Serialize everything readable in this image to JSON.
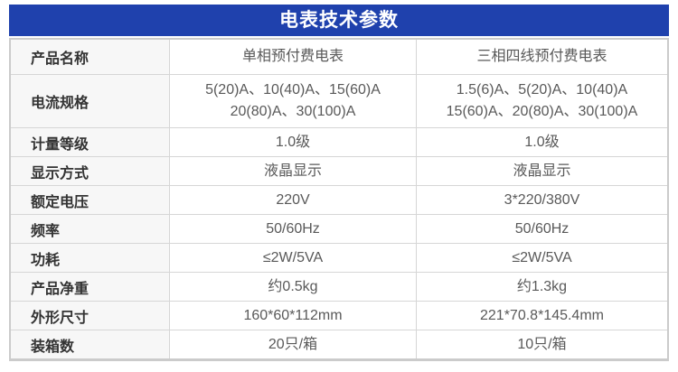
{
  "header": {
    "title": "电表技术参数"
  },
  "colors": {
    "header_bg": "#1f41ad",
    "header_text": "#ffffff",
    "outer_border": "#cbcbcb",
    "inner_border": "#d6d6d6",
    "label_bg": "#f7f7f7",
    "label_text": "#333333",
    "value_text": "#595959"
  },
  "table": {
    "rows": [
      {
        "label": "产品名称",
        "values": [
          "单相预付费电表",
          "三相四线预付费电表"
        ]
      },
      {
        "label": "电流规格",
        "values": [
          "5(20)A、10(40)A、15(60)A\n20(80)A、30(100)A",
          "1.5(6)A、5(20)A、10(40)A\n15(60)A、20(80)A、30(100)A"
        ]
      },
      {
        "label": "计量等级",
        "values": [
          "1.0级",
          "1.0级"
        ]
      },
      {
        "label": "显示方式",
        "values": [
          "液晶显示",
          "液晶显示"
        ]
      },
      {
        "label": "额定电压",
        "values": [
          "220V",
          "3*220/380V"
        ]
      },
      {
        "label": "频率",
        "values": [
          "50/60Hz",
          "50/60Hz"
        ]
      },
      {
        "label": "功耗",
        "values": [
          "≤2W/5VA",
          "≤2W/5VA"
        ]
      },
      {
        "label": "产品净重",
        "values": [
          "约0.5kg",
          "约1.3kg"
        ]
      },
      {
        "label": "外形尺寸",
        "values": [
          "160*60*112mm",
          "221*70.8*145.4mm"
        ]
      },
      {
        "label": "装箱数",
        "values": [
          "20只/箱",
          "10只/箱"
        ]
      }
    ]
  }
}
